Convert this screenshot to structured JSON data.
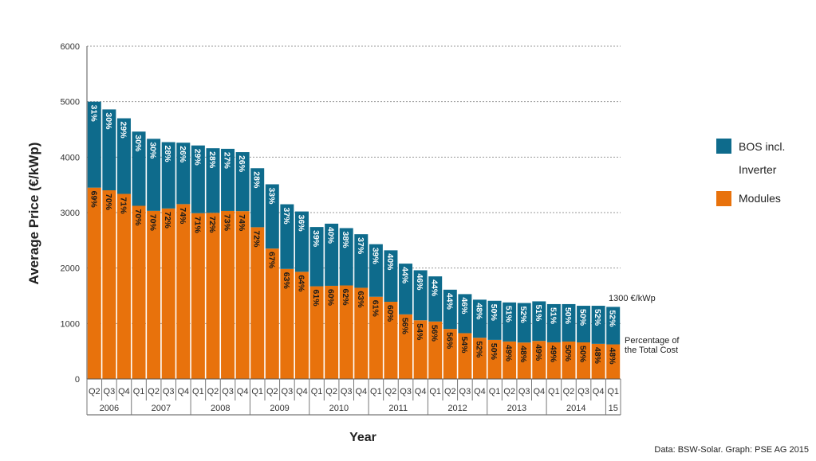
{
  "chart_data": {
    "type": "bar",
    "stacked": true,
    "ylabel": "Average Price (€/kWp)",
    "xlabel": "Year",
    "ylim": [
      0,
      6000
    ],
    "yticks": [
      0,
      1000,
      2000,
      3000,
      4000,
      5000,
      6000
    ],
    "quarters": [
      "Q2",
      "Q3",
      "Q4",
      "Q1",
      "Q2",
      "Q3",
      "Q4",
      "Q1",
      "Q2",
      "Q3",
      "Q4",
      "Q1",
      "Q2",
      "Q3",
      "Q4",
      "Q1",
      "Q2",
      "Q3",
      "Q4",
      "Q1",
      "Q2",
      "Q3",
      "Q4",
      "Q1",
      "Q2",
      "Q3",
      "Q4",
      "Q1",
      "Q2",
      "Q3",
      "Q4",
      "Q1",
      "Q2",
      "Q3",
      "Q4",
      "Q1"
    ],
    "years": [
      {
        "label": "2006",
        "count": 3
      },
      {
        "label": "2007",
        "count": 4
      },
      {
        "label": "2008",
        "count": 4
      },
      {
        "label": "2009",
        "count": 4
      },
      {
        "label": "2010",
        "count": 4
      },
      {
        "label": "2011",
        "count": 4
      },
      {
        "label": "2012",
        "count": 4
      },
      {
        "label": "2013",
        "count": 4
      },
      {
        "label": "2014",
        "count": 4
      },
      {
        "label": "15",
        "count": 1
      }
    ],
    "totals": [
      5000,
      4860,
      4700,
      4460,
      4330,
      4270,
      4260,
      4210,
      4160,
      4150,
      4090,
      3800,
      3510,
      3150,
      3020,
      2740,
      2800,
      2720,
      2610,
      2430,
      2320,
      2080,
      1960,
      1850,
      1610,
      1530,
      1430,
      1410,
      1380,
      1370,
      1400,
      1350,
      1350,
      1320,
      1320,
      1300
    ],
    "series": [
      {
        "name": "Modules",
        "color": "#E8720C",
        "percent_labels": [
          "69%",
          "70%",
          "71%",
          "70%",
          "70%",
          "72%",
          "74%",
          "71%",
          "72%",
          "73%",
          "74%",
          "72%",
          "67%",
          "63%",
          "64%",
          "61%",
          "60%",
          "62%",
          "63%",
          "61%",
          "60%",
          "56%",
          "54%",
          "56%",
          "56%",
          "54%",
          "52%",
          "50%",
          "49%",
          "48%",
          "49%",
          "49%",
          "50%",
          "50%",
          "48%",
          "48%"
        ]
      },
      {
        "name": "BOS incl. Inverter",
        "color": "#0E6B8C",
        "percent_labels": [
          "31%",
          "30%",
          "29%",
          "30%",
          "30%",
          "28%",
          "26%",
          "29%",
          "28%",
          "27%",
          "26%",
          "28%",
          "33%",
          "37%",
          "36%",
          "39%",
          "40%",
          "38%",
          "37%",
          "39%",
          "40%",
          "44%",
          "46%",
          "44%",
          "44%",
          "46%",
          "48%",
          "50%",
          "51%",
          "52%",
          "51%",
          "51%",
          "50%",
          "50%",
          "52%",
          "52%"
        ]
      }
    ],
    "legend": [
      {
        "label_line1": "BOS incl.",
        "label_line2": "Inverter",
        "color": "#0E6B8C"
      },
      {
        "label_line1": "Modules",
        "label_line2": "",
        "color": "#E8720C"
      }
    ],
    "annotations": {
      "last_value": "1300 €/kWp",
      "percentage_note_line1": "Percentage of",
      "percentage_note_line2": "the Total Cost"
    },
    "source": "Data: BSW-Solar. Graph: PSE AG 2015"
  }
}
